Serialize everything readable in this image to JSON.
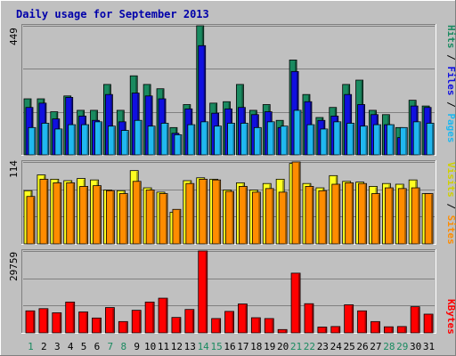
{
  "chart_data": [
    {
      "type": "bar",
      "title": "Daily usage for September 2013",
      "panel": "top",
      "ymax_label": "449",
      "side_labels": [
        "Pages",
        "Files",
        "Hits"
      ],
      "categories": [
        "1",
        "2",
        "3",
        "4",
        "5",
        "6",
        "7",
        "8",
        "9",
        "10",
        "11",
        "12",
        "13",
        "14",
        "15",
        "16",
        "17",
        "18",
        "19",
        "20",
        "21",
        "22",
        "23",
        "24",
        "25",
        "26",
        "27",
        "28",
        "29",
        "30",
        "31"
      ],
      "weekend_days": [
        "1",
        "7",
        "8",
        "14",
        "15",
        "21",
        "22",
        "28",
        "29"
      ],
      "series": [
        {
          "name": "Hits",
          "values": [
            195,
            195,
            150,
            205,
            155,
            155,
            245,
            155,
            275,
            245,
            230,
            95,
            175,
            449,
            180,
            185,
            245,
            155,
            175,
            120,
            330,
            210,
            130,
            165,
            245,
            260,
            155,
            140,
            95,
            190,
            170
          ]
        },
        {
          "name": "Files",
          "values": [
            165,
            180,
            125,
            200,
            135,
            120,
            210,
            115,
            215,
            205,
            195,
            75,
            160,
            380,
            145,
            160,
            165,
            140,
            150,
            95,
            290,
            185,
            120,
            135,
            210,
            175,
            140,
            105,
            60,
            170,
            165
          ]
        },
        {
          "name": "Pages",
          "values": [
            95,
            110,
            90,
            105,
            105,
            115,
            100,
            85,
            120,
            100,
            110,
            70,
            105,
            115,
            100,
            110,
            110,
            95,
            115,
            100,
            155,
            105,
            90,
            115,
            110,
            100,
            105,
            105,
            95,
            115,
            110
          ]
        }
      ],
      "colors": {
        "Hits": "#1a8a60",
        "Files": "#1010e0",
        "Pages": "#20b8f0"
      }
    },
    {
      "type": "bar",
      "panel": "middle",
      "ymax_label": "114",
      "side_labels": [
        "Sites",
        "Visits"
      ],
      "categories": [
        "1",
        "2",
        "3",
        "4",
        "5",
        "6",
        "7",
        "8",
        "9",
        "10",
        "11",
        "12",
        "13",
        "14",
        "15",
        "16",
        "17",
        "18",
        "19",
        "20",
        "21",
        "22",
        "23",
        "24",
        "25",
        "26",
        "27",
        "28",
        "29",
        "30",
        "31"
      ],
      "series": [
        {
          "name": "Visits",
          "values": [
            74,
            96,
            90,
            88,
            91,
            89,
            75,
            74,
            102,
            78,
            72,
            44,
            88,
            92,
            90,
            75,
            85,
            75,
            84,
            90,
            112,
            84,
            78,
            95,
            87,
            86,
            80,
            84,
            83,
            89,
            70
          ]
        },
        {
          "name": "Sites",
          "values": [
            66,
            90,
            85,
            85,
            80,
            81,
            74,
            70,
            87,
            75,
            70,
            48,
            84,
            90,
            89,
            73,
            80,
            72,
            77,
            72,
            114,
            80,
            74,
            83,
            85,
            84,
            70,
            78,
            77,
            78,
            70
          ]
        }
      ],
      "colors": {
        "Visits": "#ffff20",
        "Sites": "#ff8c00"
      }
    },
    {
      "type": "bar",
      "panel": "bottom",
      "ymax_label": "29759",
      "side_labels": [
        "KBytes"
      ],
      "categories": [
        "1",
        "2",
        "3",
        "4",
        "5",
        "6",
        "7",
        "8",
        "9",
        "10",
        "11",
        "12",
        "13",
        "14",
        "15",
        "16",
        "17",
        "18",
        "19",
        "20",
        "21",
        "22",
        "23",
        "24",
        "25",
        "26",
        "27",
        "28",
        "29",
        "30",
        "31"
      ],
      "series": [
        {
          "name": "KBytes",
          "values": [
            8000,
            8800,
            7300,
            11200,
            7600,
            5400,
            9200,
            4100,
            8200,
            11200,
            12600,
            5600,
            8500,
            29759,
            5200,
            7800,
            10500,
            5500,
            5200,
            1200,
            21700,
            10600,
            2100,
            2300,
            10200,
            8000,
            4100,
            2200,
            2300,
            9500,
            6800
          ]
        }
      ],
      "colors": {
        "KBytes": "#ff0000"
      }
    }
  ]
}
